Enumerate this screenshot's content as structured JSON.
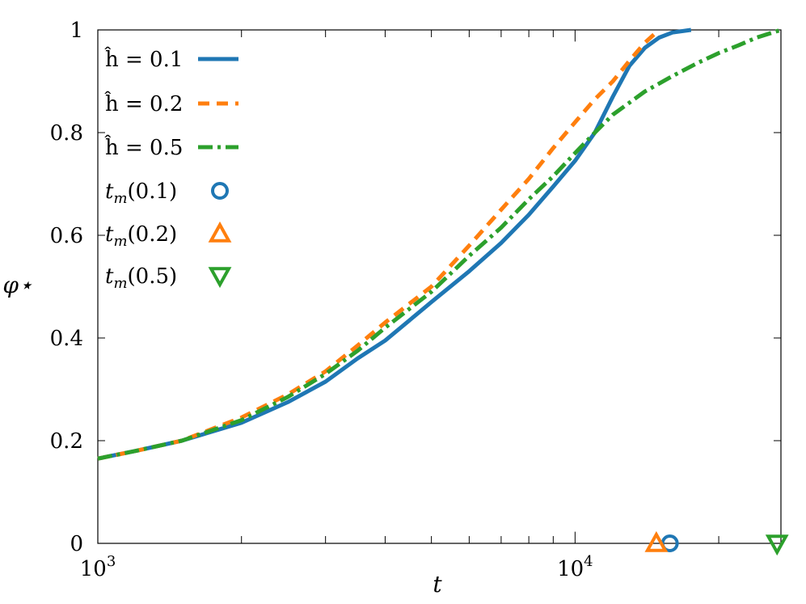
{
  "chart_data": {
    "type": "line",
    "xlabel": "t",
    "ylabel": "φ⋆",
    "xscale": "log",
    "xlim": [
      1000,
      27000
    ],
    "ylim": [
      0,
      1
    ],
    "x_ticks": [
      {
        "value": 1000,
        "base": "10",
        "exp": "3"
      },
      {
        "value": 10000,
        "base": "10",
        "exp": "4"
      }
    ],
    "y_ticks": [
      {
        "value": 0,
        "label": "0"
      },
      {
        "value": 0.2,
        "label": "0.2"
      },
      {
        "value": 0.4,
        "label": "0.4"
      },
      {
        "value": 0.6,
        "label": "0.6"
      },
      {
        "value": 0.8,
        "label": "0.8"
      },
      {
        "value": 1,
        "label": "1"
      }
    ],
    "grid": false,
    "legend_position": "top-left",
    "series": [
      {
        "name": "ĥ = 0.1",
        "color": "#1f77b4",
        "style": "solid",
        "x": [
          1000,
          1200,
          1500,
          2000,
          2500,
          3000,
          3500,
          4000,
          5000,
          6000,
          7000,
          8000,
          9000,
          10000,
          11000,
          12000,
          13000,
          14000,
          15000,
          16000,
          17500
        ],
        "y": [
          0.165,
          0.18,
          0.2,
          0.235,
          0.275,
          0.315,
          0.36,
          0.395,
          0.47,
          0.53,
          0.585,
          0.64,
          0.695,
          0.745,
          0.8,
          0.87,
          0.93,
          0.965,
          0.985,
          0.995,
          1.0
        ]
      },
      {
        "name": "ĥ = 0.2",
        "color": "#ff7f0e",
        "style": "dashed",
        "x": [
          1000,
          1200,
          1500,
          2000,
          2500,
          3000,
          3500,
          4000,
          5000,
          6000,
          7000,
          8000,
          9000,
          10000,
          11000,
          12000,
          13000,
          14000,
          15000
        ],
        "y": [
          0.165,
          0.18,
          0.2,
          0.245,
          0.29,
          0.335,
          0.385,
          0.43,
          0.5,
          0.58,
          0.65,
          0.71,
          0.77,
          0.82,
          0.865,
          0.9,
          0.94,
          0.975,
          1.0
        ]
      },
      {
        "name": "ĥ = 0.5",
        "color": "#2ca02c",
        "style": "dashdot",
        "x": [
          1000,
          1200,
          1500,
          2000,
          2500,
          3000,
          3500,
          4000,
          5000,
          6000,
          7000,
          8000,
          9000,
          10000,
          11000,
          12000,
          14000,
          16000,
          18000,
          20000,
          22000,
          24000,
          27000
        ],
        "y": [
          0.165,
          0.18,
          0.2,
          0.24,
          0.285,
          0.33,
          0.375,
          0.42,
          0.49,
          0.56,
          0.615,
          0.67,
          0.715,
          0.76,
          0.8,
          0.835,
          0.88,
          0.91,
          0.935,
          0.955,
          0.97,
          0.985,
          1.0
        ]
      }
    ],
    "markers": [
      {
        "name": "t_m(0.1)",
        "label_base": "t",
        "label_sub": "m",
        "label_arg": "(0.1)",
        "shape": "circle",
        "color": "#1f77b4",
        "x": 15800,
        "y": 0
      },
      {
        "name": "t_m(0.2)",
        "label_base": "t",
        "label_sub": "m",
        "label_arg": "(0.2)",
        "shape": "triangle-up",
        "color": "#ff7f0e",
        "x": 14800,
        "y": 0
      },
      {
        "name": "t_m(0.5)",
        "label_base": "t",
        "label_sub": "m",
        "label_arg": "(0.5)",
        "shape": "triangle-down",
        "color": "#2ca02c",
        "x": 26500,
        "y": 0
      }
    ]
  }
}
